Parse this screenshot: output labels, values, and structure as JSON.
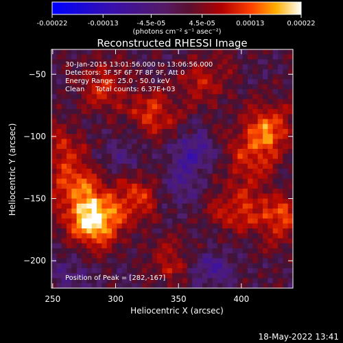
{
  "colorbar": {
    "ticks": [
      "-0.00022",
      "-0.00013",
      "-4.5e-05",
      "4.5e-05",
      "0.00013",
      "0.00022"
    ],
    "tick_values": [
      -0.00022,
      -0.00013,
      -4.5e-05,
      4.5e-05,
      0.00013,
      0.00022
    ],
    "range": [
      -0.00022,
      0.00022
    ],
    "unit_label": "(photons cm⁻² s⁻¹ asec⁻²)"
  },
  "chart_data": {
    "type": "heatmap",
    "title": "Reconstructed RHESSI Image",
    "xlabel": "Heliocentric X (arcsec)",
    "ylabel": "Heliocentric Y (arcsec)",
    "xlim": [
      249,
      441
    ],
    "ylim": [
      -222,
      -30
    ],
    "xticks": [
      250,
      300,
      350,
      400
    ],
    "yticks": [
      -50,
      -100,
      -150,
      -200
    ],
    "annotations": [
      "30-Jan-2015 13:01:56.000 to 13:06:56.000",
      "Detectors: 3F 5F 6F 7F 8F 9F, Att 0",
      "Energy Range: 25.0 - 50.0 keV",
      "Clean     Total counts: 6.37E+03"
    ],
    "peak_label": "Position of Peak = [282,-167]",
    "peak": [
      282,
      -167
    ],
    "hotspots": [
      {
        "x": 282,
        "y": -169,
        "value": 0.00022
      },
      {
        "x": 268,
        "y": -140,
        "value": 0.00013
      },
      {
        "x": 315,
        "y": -150,
        "value": 0.00011
      },
      {
        "x": 330,
        "y": -82,
        "value": 0.0001
      },
      {
        "x": 420,
        "y": -95,
        "value": 0.00014
      },
      {
        "x": 395,
        "y": -158,
        "value": 0.0001
      },
      {
        "x": 430,
        "y": -165,
        "value": 0.00012
      },
      {
        "x": 290,
        "y": -60,
        "value": 9e-05
      },
      {
        "x": 255,
        "y": -110,
        "value": 8e-05
      },
      {
        "x": 370,
        "y": -55,
        "value": 8e-05
      },
      {
        "x": 345,
        "y": -200,
        "value": 7e-05
      },
      {
        "x": 405,
        "y": -118,
        "value": 9e-05
      }
    ],
    "coldspots": [
      {
        "x": 362,
        "y": -112,
        "value": -8e-05
      },
      {
        "x": 375,
        "y": -205,
        "value": -7e-05
      },
      {
        "x": 352,
        "y": -142,
        "value": -5e-05
      },
      {
        "x": 305,
        "y": -118,
        "value": -4e-05
      },
      {
        "x": 265,
        "y": -212,
        "value": -4e-05
      }
    ]
  },
  "footer": {
    "timestamp": "18-May-2022 13:41"
  }
}
